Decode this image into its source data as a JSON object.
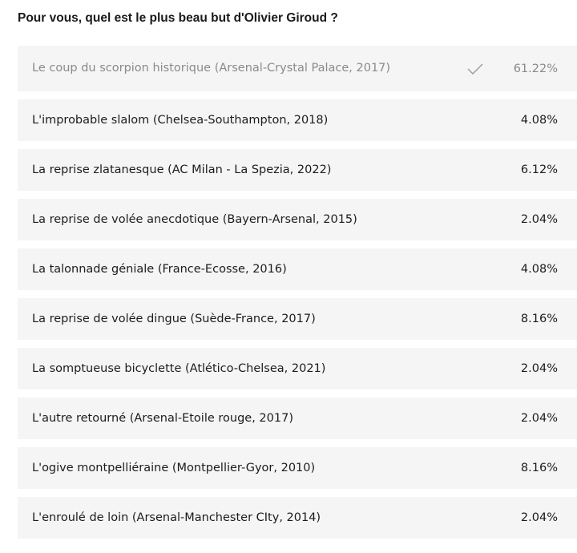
{
  "poll": {
    "question": "Pour vous, quel est le plus beau but d'Olivier Giroud ?",
    "options": [
      {
        "label": "Le coup du scorpion historique (Arsenal-Crystal Palace, 2017)",
        "percent": "61.22%",
        "selected": true,
        "icon": "checkmark-icon"
      },
      {
        "label": "L'improbable slalom (Chelsea-Southampton, 2018)",
        "percent": "4.08%"
      },
      {
        "label": "La reprise zlatanesque (AC Milan - La Spezia, 2022)",
        "percent": "6.12%"
      },
      {
        "label": "La reprise de volée anecdotique (Bayern-Arsenal, 2015)",
        "percent": "2.04%"
      },
      {
        "label": "La talonnade géniale (France-Ecosse, 2016)",
        "percent": "4.08%"
      },
      {
        "label": "La reprise de volée dingue (Suède-France, 2017)",
        "percent": "8.16%"
      },
      {
        "label": "La somptueuse bicyclette (Atlético-Chelsea, 2021)",
        "percent": "2.04%"
      },
      {
        "label": "L'autre retourné (Arsenal-Etoile rouge, 2017)",
        "percent": "2.04%"
      },
      {
        "label": "L'ogive montpelliéraine (Montpellier-Gyor, 2010)",
        "percent": "8.16%"
      },
      {
        "label": "L'enroulé de loin (Arsenal-Manchester CIty, 2014)",
        "percent": "2.04%"
      }
    ]
  },
  "colors": {
    "option_background": "#f5f5f5",
    "text": "#1c1c1c",
    "selected_text": "#8a8a8a"
  }
}
